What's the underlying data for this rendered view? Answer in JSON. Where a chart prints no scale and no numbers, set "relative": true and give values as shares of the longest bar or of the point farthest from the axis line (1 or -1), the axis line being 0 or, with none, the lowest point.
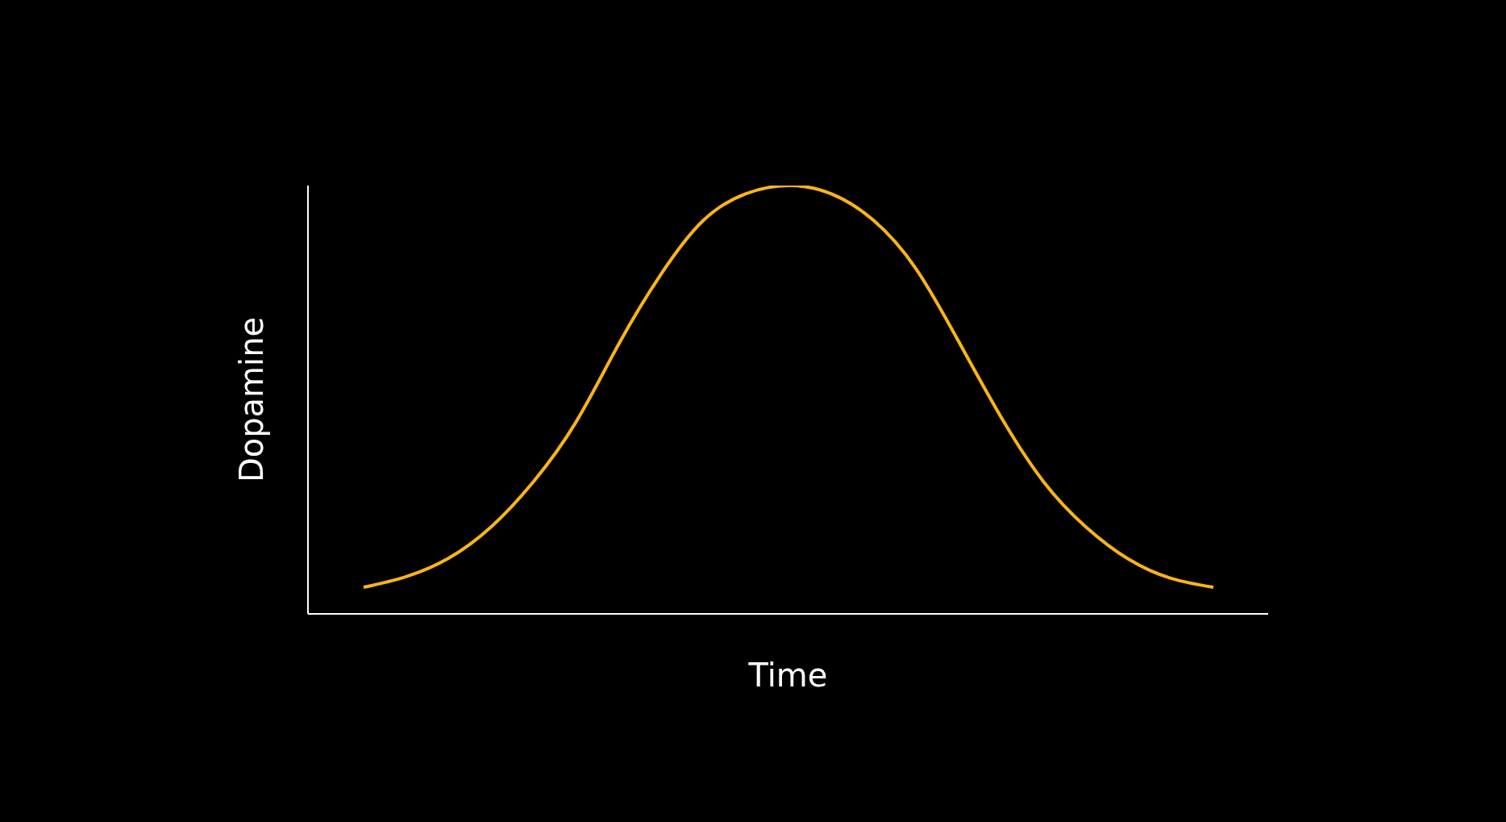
{
  "chart_data": {
    "type": "line",
    "relative": true,
    "xlabel": "Time",
    "ylabel": "Dopamine",
    "grid": false,
    "legend": false,
    "marker": "none",
    "line_style": "solid",
    "categories": [
      null,
      null,
      null,
      null,
      null,
      null,
      null,
      null,
      null,
      null,
      null,
      null,
      null,
      null,
      null,
      null,
      null,
      null,
      null,
      null,
      null
    ],
    "series": [
      {
        "color": "#fbb516",
        "values": [
          0.062,
          0.087,
          0.13,
          0.203,
          0.309,
          0.448,
          0.629,
          0.793,
          0.919,
          0.981,
          1,
          0.981,
          0.919,
          0.806,
          0.637,
          0.46,
          0.309,
          0.203,
          0.128,
          0.083,
          0.062
        ]
      }
    ]
  }
}
